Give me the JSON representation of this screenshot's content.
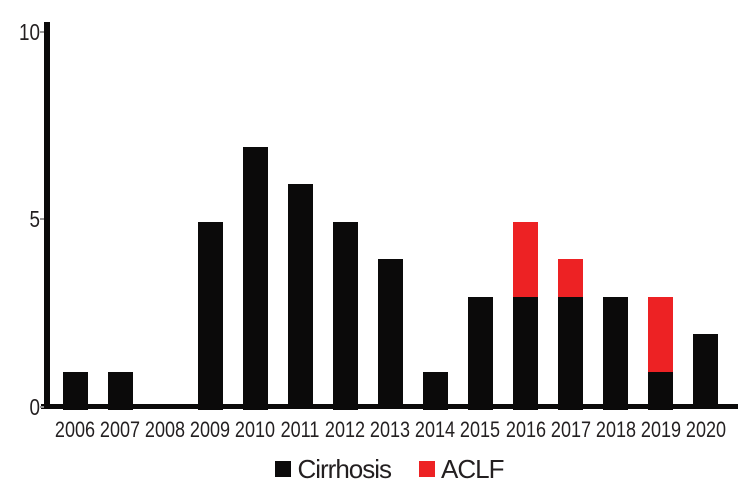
{
  "chart_data": {
    "type": "bar",
    "stacked": true,
    "title": "",
    "xlabel": "",
    "ylabel": "",
    "ylim": [
      0,
      10
    ],
    "yticks": [
      0,
      5,
      10
    ],
    "grid": false,
    "legend_position": "bottom",
    "categories": [
      "2006",
      "2007",
      "2008",
      "2009",
      "2010",
      "2011",
      "2012",
      "2013",
      "2014",
      "2015",
      "2016",
      "2017",
      "2018",
      "2019",
      "2020"
    ],
    "series": [
      {
        "name": "Cirrhosis",
        "color": "#0b0a0a",
        "values": [
          1,
          1,
          0,
          5,
          7,
          6,
          5,
          4,
          1,
          3,
          3,
          3,
          3,
          1,
          2
        ]
      },
      {
        "name": "ACLF",
        "color": "#ed2224",
        "values": [
          0,
          0,
          0,
          0,
          0,
          0,
          0,
          0,
          0,
          0,
          2,
          1,
          0,
          2,
          0
        ]
      }
    ]
  },
  "legend": {
    "items": [
      {
        "label": "Cirrhosis",
        "color": "#0b0a0a"
      },
      {
        "label": "ACLF",
        "color": "#ed2224"
      }
    ]
  },
  "colors": {
    "axis": "#0b0a0a",
    "text": "#231f20",
    "background": "#ffffff"
  }
}
